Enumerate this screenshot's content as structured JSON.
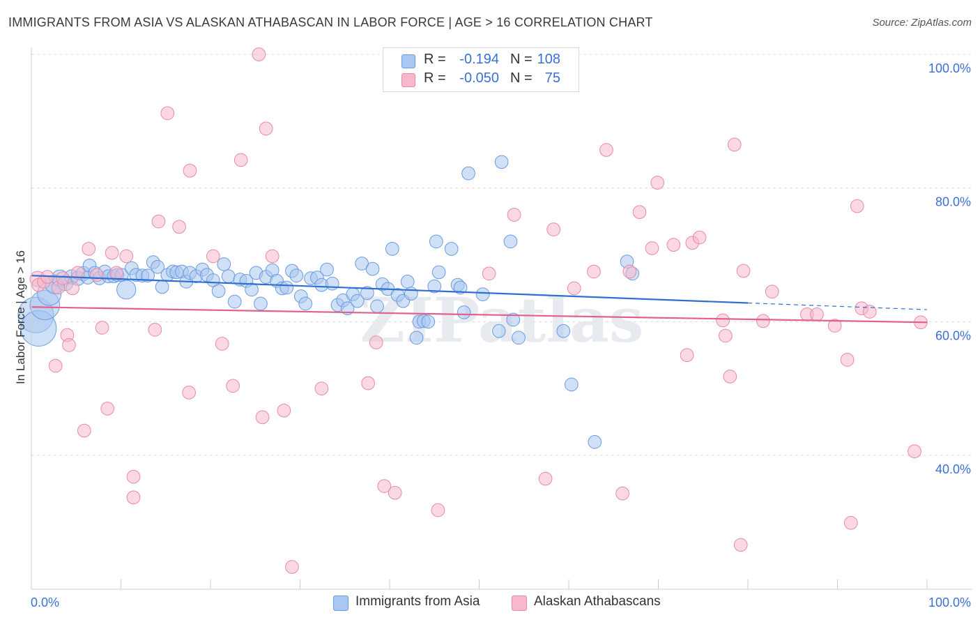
{
  "title": "IMMIGRANTS FROM ASIA VS ALASKAN ATHABASCAN IN LABOR FORCE | AGE > 16 CORRELATION CHART",
  "source": "Source: ZipAtlas.com",
  "watermark": "ZIPatlas",
  "legend": {
    "rows": [
      {
        "r_label": "R =",
        "r_value": "-0.194",
        "n_label": "N =",
        "n_value": "108",
        "color": "#a9c7f0"
      },
      {
        "r_label": "R =",
        "r_value": "-0.050",
        "n_label": "N =",
        "n_value": "75",
        "color": "#f7b8cc"
      }
    ]
  },
  "bottom_legend": {
    "items": [
      {
        "label": "Immigrants from Asia",
        "color": "#a9c7f0"
      },
      {
        "label": "Alaskan Athabascans",
        "color": "#f7b8cc"
      }
    ]
  },
  "chart_data": {
    "type": "scatter",
    "title": "IMMIGRANTS FROM ASIA VS ALASKAN ATHABASCAN IN LABOR FORCE | AGE > 16 CORRELATION CHART",
    "xlabel": "",
    "ylabel": "In Labor Force | Age > 16",
    "xlim": [
      0,
      100
    ],
    "ylim": [
      22,
      102
    ],
    "x_tick_labels": [
      "0.0%",
      "100.0%"
    ],
    "y_ticks": [
      40,
      60,
      80,
      100
    ],
    "y_tick_labels": [
      "40.0%",
      "60.0%",
      "80.0%",
      "100.0%"
    ],
    "grid": true,
    "legend_position": "top-center",
    "series": [
      {
        "name": "Immigrants from Asia",
        "color": "#6a9be0",
        "fill": "#a9c7f0",
        "trend": {
          "x": [
            0,
            80
          ],
          "y": [
            66.9,
            62.8
          ],
          "dashed_to": [
            100,
            61.8
          ],
          "color": "#2f6fd0"
        },
        "points": [
          [
            0.5,
            61.0,
            3
          ],
          [
            0.8,
            59.0,
            3
          ],
          [
            1.5,
            62.5,
            2.5
          ],
          [
            2.0,
            64.2,
            2
          ],
          [
            2.6,
            65.6,
            1.6
          ],
          [
            3.2,
            66.5,
            1.4
          ],
          [
            3.8,
            65.8,
            1.3
          ],
          [
            4.5,
            66.7,
            1.2
          ],
          [
            5.2,
            66.5,
            1.2
          ],
          [
            5.8,
            67.2,
            1.2
          ],
          [
            6.3,
            66.6,
            1.1
          ],
          [
            6.5,
            68.4,
            1.1
          ],
          [
            7.1,
            67.3,
            1.1
          ],
          [
            7.6,
            66.5,
            1.1
          ],
          [
            8.2,
            67.5,
            1.1
          ],
          [
            8.6,
            66.8,
            1.1
          ],
          [
            9.2,
            66.8,
            1.1
          ],
          [
            9.6,
            67.0,
            1.1
          ],
          [
            10.1,
            67.0,
            1.1
          ],
          [
            10.6,
            64.8,
            1.6
          ],
          [
            11.2,
            68.0,
            1.1
          ],
          [
            11.7,
            67.0,
            1.1
          ],
          [
            12.4,
            66.9,
            1.1
          ],
          [
            13.0,
            66.9,
            1.1
          ],
          [
            13.6,
            68.9,
            1.1
          ],
          [
            14.1,
            68.2,
            1.1
          ],
          [
            14.6,
            65.2,
            1.1
          ],
          [
            15.2,
            67.0,
            1.1
          ],
          [
            15.8,
            67.5,
            1.1
          ],
          [
            16.2,
            67.4,
            1.1
          ],
          [
            16.8,
            67.5,
            1.1
          ],
          [
            17.3,
            66.0,
            1.1
          ],
          [
            17.7,
            67.3,
            1.1
          ],
          [
            18.4,
            66.8,
            1.1
          ],
          [
            19.1,
            67.8,
            1.1
          ],
          [
            19.6,
            67.0,
            1.1
          ],
          [
            20.3,
            66.2,
            1.1
          ],
          [
            20.9,
            64.6,
            1.1
          ],
          [
            21.5,
            68.6,
            1.1
          ],
          [
            22.0,
            66.8,
            1.1
          ],
          [
            22.7,
            63.0,
            1.1
          ],
          [
            23.3,
            66.3,
            1.1
          ],
          [
            24.0,
            66.1,
            1.1
          ],
          [
            24.6,
            64.8,
            1.1
          ],
          [
            25.1,
            67.3,
            1.1
          ],
          [
            25.6,
            62.7,
            1.1
          ],
          [
            26.2,
            66.7,
            1.1
          ],
          [
            26.9,
            67.7,
            1.1
          ],
          [
            27.4,
            66.1,
            1.1
          ],
          [
            28.0,
            65.0,
            1.1
          ],
          [
            28.5,
            65.1,
            1.1
          ],
          [
            29.1,
            67.6,
            1.1
          ],
          [
            29.6,
            66.9,
            1.1
          ],
          [
            30.1,
            63.8,
            1.1
          ],
          [
            30.6,
            62.7,
            1.1
          ],
          [
            31.2,
            66.5,
            1.1
          ],
          [
            31.9,
            66.6,
            1.1
          ],
          [
            32.4,
            65.5,
            1.1
          ],
          [
            33.0,
            67.8,
            1.1
          ],
          [
            33.6,
            65.7,
            1.1
          ],
          [
            34.2,
            62.5,
            1.1
          ],
          [
            34.8,
            63.2,
            1.1
          ],
          [
            35.3,
            62.0,
            1.1
          ],
          [
            35.9,
            64.1,
            1.1
          ],
          [
            36.4,
            63.1,
            1.1
          ],
          [
            36.9,
            68.7,
            1.1
          ],
          [
            37.5,
            64.3,
            1.1
          ],
          [
            38.1,
            67.9,
            1.1
          ],
          [
            38.6,
            62.3,
            1.1
          ],
          [
            39.2,
            65.6,
            1.1
          ],
          [
            39.8,
            64.9,
            1.1
          ],
          [
            40.3,
            70.9,
            1.1
          ],
          [
            40.9,
            64.0,
            1.1
          ],
          [
            41.5,
            63.1,
            1.1
          ],
          [
            42.0,
            66.0,
            1.1
          ],
          [
            42.4,
            64.2,
            1.1
          ],
          [
            43.3,
            60.0,
            1.1
          ],
          [
            43.8,
            60.1,
            1.1
          ],
          [
            43.0,
            57.6,
            1.1
          ],
          [
            44.3,
            60.0,
            1.1
          ],
          [
            45.0,
            65.3,
            1.1
          ],
          [
            45.5,
            67.4,
            1.1
          ],
          [
            45.2,
            72.0,
            1.1
          ],
          [
            46.9,
            70.9,
            1.1
          ],
          [
            47.6,
            65.5,
            1.1
          ],
          [
            47.9,
            65.1,
            1.1
          ],
          [
            48.3,
            61.4,
            1.1
          ],
          [
            48.8,
            82.2,
            1.1
          ],
          [
            50.4,
            64.1,
            1.1
          ],
          [
            52.2,
            58.6,
            1.1
          ],
          [
            52.5,
            83.9,
            1.1
          ],
          [
            53.5,
            72.0,
            1.1
          ],
          [
            53.8,
            60.3,
            1.1
          ],
          [
            54.4,
            57.6,
            1.1
          ],
          [
            59.4,
            58.6,
            1.1
          ],
          [
            60.3,
            50.6,
            1.1
          ],
          [
            62.9,
            42.0,
            1.1
          ],
          [
            66.5,
            69.0,
            1.1
          ],
          [
            67.1,
            67.2,
            1.1
          ]
        ]
      },
      {
        "name": "Alaskan Athabascans",
        "color": "#e88aa7",
        "fill": "#f7b8cc",
        "trend": {
          "x": [
            0,
            100
          ],
          "y": [
            62.2,
            59.9
          ],
          "color": "#e06090"
        },
        "points": [
          [
            0.7,
            66.4,
            1.3
          ],
          [
            0.8,
            65.5,
            1.1
          ],
          [
            1.4,
            66.0,
            1.1
          ],
          [
            1.8,
            66.7,
            1.1
          ],
          [
            2.7,
            53.4,
            1.1
          ],
          [
            3.0,
            65.1,
            1.1
          ],
          [
            3.5,
            66.5,
            1.1
          ],
          [
            4.0,
            58.0,
            1.1
          ],
          [
            4.2,
            56.5,
            1.1
          ],
          [
            4.6,
            65.0,
            1.1
          ],
          [
            5.2,
            67.3,
            1.1
          ],
          [
            5.9,
            43.7,
            1.1
          ],
          [
            6.4,
            70.9,
            1.1
          ],
          [
            7.3,
            67.0,
            1.1
          ],
          [
            7.9,
            59.1,
            1.1
          ],
          [
            8.5,
            47.0,
            1.1
          ],
          [
            9.0,
            70.3,
            1.1
          ],
          [
            9.5,
            67.3,
            1.1
          ],
          [
            10.6,
            69.8,
            1.1
          ],
          [
            11.4,
            36.8,
            1.1
          ],
          [
            11.4,
            33.7,
            1.1
          ],
          [
            13.8,
            58.8,
            1.1
          ],
          [
            14.2,
            75.0,
            1.1
          ],
          [
            15.2,
            91.2,
            1.1
          ],
          [
            16.5,
            74.2,
            1.1
          ],
          [
            17.6,
            49.4,
            1.1
          ],
          [
            17.7,
            82.6,
            1.1
          ],
          [
            20.3,
            69.8,
            1.1
          ],
          [
            21.3,
            56.7,
            1.1
          ],
          [
            22.5,
            50.4,
            1.1
          ],
          [
            23.4,
            84.2,
            1.1
          ],
          [
            25.4,
            100.0,
            1.1
          ],
          [
            25.8,
            45.7,
            1.1
          ],
          [
            26.2,
            88.9,
            1.1
          ],
          [
            26.9,
            69.8,
            1.1
          ],
          [
            28.2,
            46.7,
            1.1
          ],
          [
            29.1,
            23.3,
            1.1
          ],
          [
            32.4,
            50.0,
            1.1
          ],
          [
            37.6,
            50.8,
            1.1
          ],
          [
            38.5,
            56.9,
            1.1
          ],
          [
            39.4,
            35.4,
            1.1
          ],
          [
            40.6,
            34.4,
            1.1
          ],
          [
            45.4,
            31.8,
            1.1
          ],
          [
            51.1,
            67.2,
            1.1
          ],
          [
            53.9,
            76.0,
            1.1
          ],
          [
            57.4,
            36.5,
            1.1
          ],
          [
            58.3,
            73.8,
            1.1
          ],
          [
            60.6,
            65.0,
            1.1
          ],
          [
            62.8,
            67.5,
            1.1
          ],
          [
            64.2,
            85.7,
            1.1
          ],
          [
            66.8,
            67.5,
            1.1
          ],
          [
            66.0,
            34.3,
            1.1
          ],
          [
            67.9,
            76.4,
            1.1
          ],
          [
            69.3,
            71.0,
            1.1
          ],
          [
            69.9,
            80.8,
            1.1
          ],
          [
            71.7,
            71.5,
            1.1
          ],
          [
            73.2,
            55.0,
            1.1
          ],
          [
            73.8,
            71.8,
            1.1
          ],
          [
            74.6,
            72.6,
            1.1
          ],
          [
            77.2,
            60.2,
            1.1
          ],
          [
            77.5,
            57.9,
            1.1
          ],
          [
            78.0,
            51.8,
            1.1
          ],
          [
            78.5,
            86.5,
            1.1
          ],
          [
            79.2,
            26.6,
            1.1
          ],
          [
            79.5,
            67.6,
            1.1
          ],
          [
            81.7,
            60.1,
            1.1
          ],
          [
            82.7,
            64.5,
            1.1
          ],
          [
            86.6,
            61.1,
            1.1
          ],
          [
            87.7,
            61.1,
            1.1
          ],
          [
            89.7,
            59.4,
            1.1
          ],
          [
            91.1,
            54.3,
            1.1
          ],
          [
            91.5,
            29.9,
            1.1
          ],
          [
            92.2,
            77.3,
            1.1
          ],
          [
            92.7,
            62.0,
            1.1
          ],
          [
            93.6,
            61.5,
            1.1
          ],
          [
            98.6,
            40.6,
            1.1
          ],
          [
            99.3,
            59.9,
            1.1
          ]
        ]
      }
    ]
  }
}
